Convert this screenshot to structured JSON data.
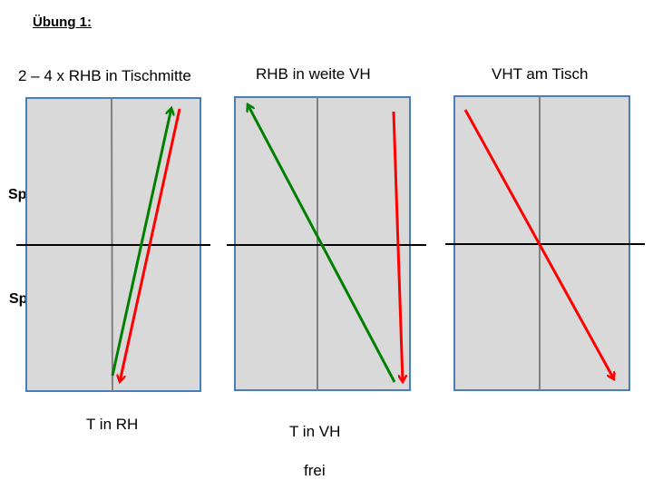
{
  "heading": "Übung 1:",
  "players": {
    "a": "Spieler A",
    "b": "Spieler B"
  },
  "tables": [
    {
      "title": "2 – 4 x RHB in Tischmitte",
      "caption": "T in RH",
      "caption2": ""
    },
    {
      "title": "RHB in weite VH",
      "caption": "T in VH",
      "caption2": "frei"
    },
    {
      "title": "VHT am Tisch",
      "caption": "",
      "caption2": ""
    }
  ],
  "colors": {
    "table_fill": "#d9d9d9",
    "table_border": "#4a7ebb",
    "center_line": "#808080",
    "net": "#000000",
    "arrow_red": "#ff0000",
    "arrow_green": "#008000"
  }
}
